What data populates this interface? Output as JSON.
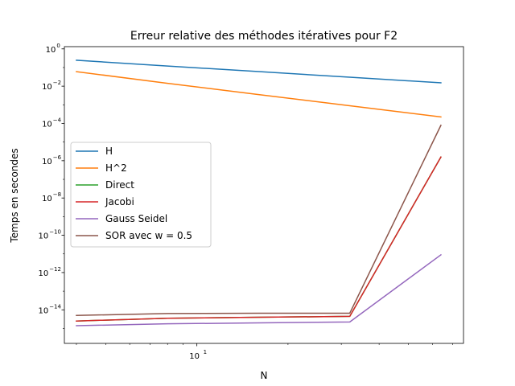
{
  "chart_data": {
    "type": "line",
    "title": "Erreur relative des méthodes itératives pour F2",
    "xlabel": "N",
    "ylabel": "Temps en secondes",
    "xscale": "log",
    "yscale": "log",
    "xlim": [
      3.65,
      76
    ],
    "ylim_exp": [
      -15.8,
      0.12
    ],
    "x_major_ticks": [
      {
        "value": 10,
        "label": "10",
        "exp": "1"
      }
    ],
    "y_major_ticks": [
      {
        "exp": 0,
        "label": "10",
        "sup": "0"
      },
      {
        "exp": -2,
        "label": "10",
        "sup": "−2"
      },
      {
        "exp": -4,
        "label": "10",
        "sup": "−4"
      },
      {
        "exp": -6,
        "label": "10",
        "sup": "−6"
      },
      {
        "exp": -8,
        "label": "10",
        "sup": "−8"
      },
      {
        "exp": -10,
        "label": "10",
        "sup": "−10"
      },
      {
        "exp": -12,
        "label": "10",
        "sup": "−12"
      },
      {
        "exp": -14,
        "label": "10",
        "sup": "−14"
      }
    ],
    "x": [
      4,
      8,
      16,
      32,
      64
    ],
    "series": [
      {
        "name": "H",
        "color": "#1f77b4",
        "log10_values": [
          -0.61,
          -0.92,
          -1.22,
          -1.52,
          -1.82
        ]
      },
      {
        "name": "H^2",
        "color": "#ff7f0e",
        "log10_values": [
          -1.22,
          -1.85,
          -2.45,
          -3.05,
          -3.65
        ]
      },
      {
        "name": "Direct",
        "color": "#2ca02c",
        "log10_values": [
          -14.6,
          -14.45,
          -14.4,
          -14.35,
          -5.8
        ]
      },
      {
        "name": "Jacobi",
        "color": "#d62728",
        "log10_values": [
          -14.6,
          -14.45,
          -14.4,
          -14.35,
          -5.8
        ]
      },
      {
        "name": "Gauss Seidel",
        "color": "#9467bd",
        "log10_values": [
          -14.85,
          -14.75,
          -14.7,
          -14.65,
          -11.05
        ]
      },
      {
        "name": "SOR avec w = 0.5",
        "color": "#8c564b",
        "log10_values": [
          -14.3,
          -14.2,
          -14.18,
          -14.18,
          -4.1
        ]
      }
    ],
    "legend_position": "center-left"
  }
}
